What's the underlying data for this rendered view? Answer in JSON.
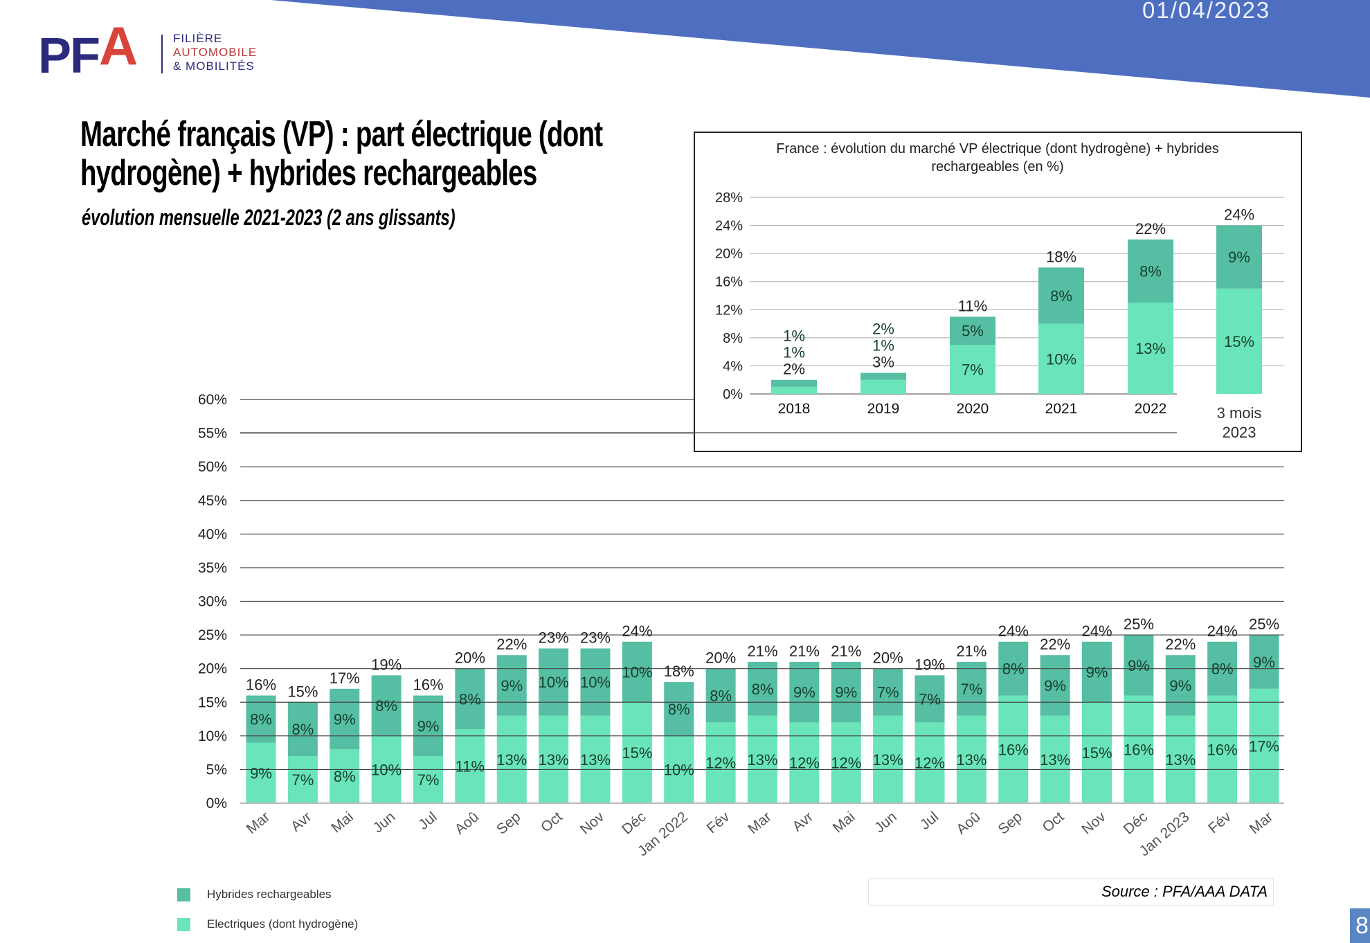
{
  "header": {
    "date": "01/04/2023",
    "logo": {
      "mark": "PFA",
      "line1": "FILIÈRE",
      "line2": "AUTOMOBILE",
      "line3": "& MOBILITÉS"
    },
    "title_line1": "Marché français (VP) : part électrique (dont",
    "title_line2": "hydrogène) + hybrides rechargeables",
    "subtitle": "évolution mensuelle 2021-2023 (2 ans glissants)"
  },
  "colors": {
    "band": "#4e6fc0",
    "hybrid": "#56bea3",
    "electric": "#6ae4b9",
    "logo_blue": "#2b2a7c",
    "logo_red": "#d9443a"
  },
  "legend": [
    {
      "label": "Hybrides rechargeables",
      "color": "#56bea3"
    },
    {
      "label": "Electriques (dont hydrogène)",
      "color": "#6ae4b9"
    }
  ],
  "source": "Source : PFA/AAA DATA",
  "page_number": "8",
  "chart_data": [
    {
      "type": "bar",
      "stacked": true,
      "ylim": [
        0,
        60
      ],
      "yticks": [
        "0%",
        "5%",
        "10%",
        "15%",
        "20%",
        "25%",
        "30%",
        "35%",
        "40%",
        "45%",
        "50%",
        "55%",
        "60%"
      ],
      "grid": true,
      "legend_placement": "bottom-left",
      "categories": [
        "Mar",
        "Avr",
        "Mai",
        "Jun",
        "Jul",
        "Aoû",
        "Sep",
        "Oct",
        "Nov",
        "Déc",
        "Jan 2022",
        "Fév",
        "Mar",
        "Avr",
        "Mai",
        "Jun",
        "Jul",
        "Aoû",
        "Sep",
        "Oct",
        "Nov",
        "Déc",
        "Jan 2023",
        "Fév",
        "Mar"
      ],
      "series": [
        {
          "name": "Electriques (dont hydrogène)",
          "values": [
            9,
            7,
            8,
            10,
            7,
            11,
            13,
            13,
            13,
            15,
            10,
            12,
            13,
            12,
            12,
            13,
            12,
            13,
            16,
            13,
            15,
            16,
            13,
            16,
            17
          ]
        },
        {
          "name": "Hybrides rechargeables",
          "values": [
            8,
            8,
            9,
            8,
            9,
            8,
            9,
            10,
            10,
            10,
            8,
            8,
            8,
            9,
            9,
            7,
            7,
            7,
            8,
            9,
            9,
            9,
            9,
            8,
            9
          ]
        }
      ],
      "totals": [
        16,
        15,
        17,
        19,
        16,
        20,
        22,
        23,
        23,
        24,
        18,
        20,
        21,
        21,
        21,
        20,
        19,
        21,
        24,
        22,
        24,
        25,
        22,
        24,
        25
      ]
    },
    {
      "type": "bar",
      "stacked": true,
      "title_line1": "France : évolution du marché VP électrique (dont hydrogène) + hybrides",
      "title_line2": "rechargeables (en %)",
      "ylim": [
        0,
        28
      ],
      "yticks": [
        "0%",
        "4%",
        "8%",
        "12%",
        "16%",
        "20%",
        "24%",
        "28%"
      ],
      "grid": true,
      "categories": [
        "2018",
        "2019",
        "2020",
        "2021",
        "2022",
        "3 mois 2023"
      ],
      "series": [
        {
          "name": "Electriques (dont hydrogène)",
          "values": [
            1,
            2,
            7,
            10,
            13,
            15
          ]
        },
        {
          "name": "Hybrides rechargeables",
          "values": [
            1,
            1,
            5,
            8,
            8,
            9
          ]
        }
      ],
      "totals": [
        2,
        3,
        11,
        18,
        22,
        24
      ]
    }
  ]
}
